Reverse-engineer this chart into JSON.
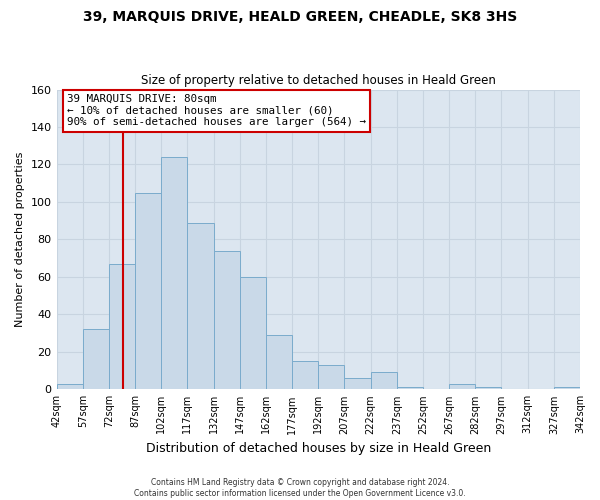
{
  "title": "39, MARQUIS DRIVE, HEALD GREEN, CHEADLE, SK8 3HS",
  "subtitle": "Size of property relative to detached houses in Heald Green",
  "xlabel": "Distribution of detached houses by size in Heald Green",
  "ylabel": "Number of detached properties",
  "footer_line1": "Contains HM Land Registry data © Crown copyright and database right 2024.",
  "footer_line2": "Contains public sector information licensed under the Open Government Licence v3.0.",
  "bin_edges": [
    42,
    57,
    72,
    87,
    102,
    117,
    132,
    147,
    162,
    177,
    192,
    207,
    222,
    237,
    252,
    267,
    282,
    297,
    312,
    327,
    342
  ],
  "bin_counts": [
    3,
    32,
    67,
    105,
    124,
    89,
    74,
    60,
    29,
    15,
    13,
    6,
    9,
    1,
    0,
    3,
    1,
    0,
    0,
    1
  ],
  "bar_facecolor": "#c9d9e8",
  "bar_edgecolor": "#7aabcc",
  "vline_x": 80,
  "vline_color": "#cc0000",
  "annotation_box_text": "39 MARQUIS DRIVE: 80sqm\n← 10% of detached houses are smaller (60)\n90% of semi-detached houses are larger (564) →",
  "annotation_box_facecolor": "white",
  "annotation_box_edgecolor": "#cc0000",
  "grid_color": "#c8d4e0",
  "background_color": "#ffffff",
  "plot_bg_color": "#dce6f0",
  "ylim": [
    0,
    160
  ],
  "tick_labels": [
    "42sqm",
    "57sqm",
    "72sqm",
    "87sqm",
    "102sqm",
    "117sqm",
    "132sqm",
    "147sqm",
    "162sqm",
    "177sqm",
    "192sqm",
    "207sqm",
    "222sqm",
    "237sqm",
    "252sqm",
    "267sqm",
    "282sqm",
    "297sqm",
    "312sqm",
    "327sqm",
    "342sqm"
  ]
}
